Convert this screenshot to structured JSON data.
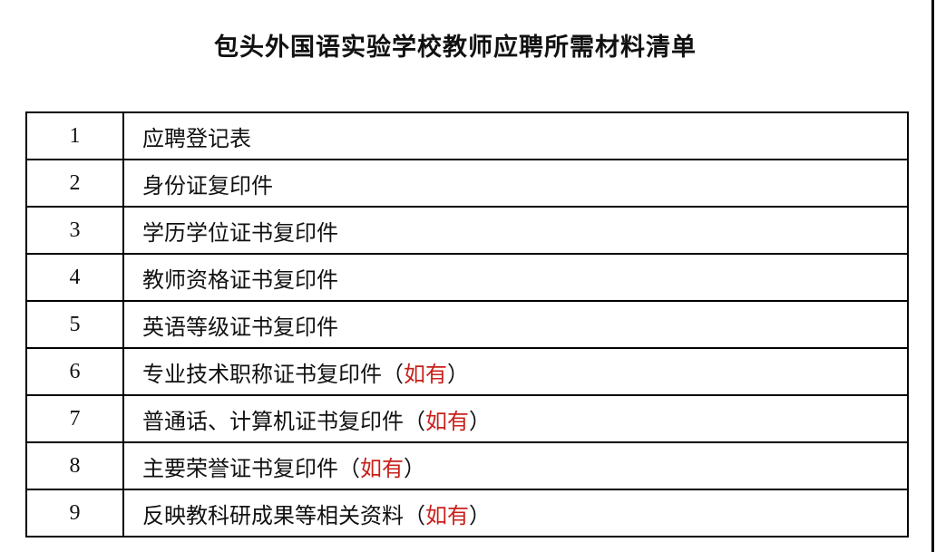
{
  "page": {
    "title": "包头外国语实验学校教师应聘所需材料清单"
  },
  "table": {
    "rows": [
      {
        "num": "1",
        "text": "应聘登记表"
      },
      {
        "num": "2",
        "text": "身份证复印件"
      },
      {
        "num": "3",
        "text": "学历学位证书复印件"
      },
      {
        "num": "4",
        "text": "教师资格证书复印件"
      },
      {
        "num": "5",
        "text": "英语等级证书复印件"
      },
      {
        "num": "6",
        "text": "专业技术职称证书复印件",
        "open": "（",
        "note": "如有",
        "close": "）"
      },
      {
        "num": "7",
        "text": "普通话、计算机证书复印件",
        "open": "（",
        "note": "如有",
        "close": "）"
      },
      {
        "num": "8",
        "text": "主要荣誉证书复印件",
        "open": "（",
        "note": "如有",
        "close": "）"
      },
      {
        "num": "9",
        "text": "反映教科研成果等相关资料",
        "open": "（",
        "note": "如有",
        "close": "）"
      }
    ]
  },
  "colors": {
    "note_red": "#c8201a",
    "text": "#111111",
    "border": "#000000",
    "background": "#ffffff"
  }
}
